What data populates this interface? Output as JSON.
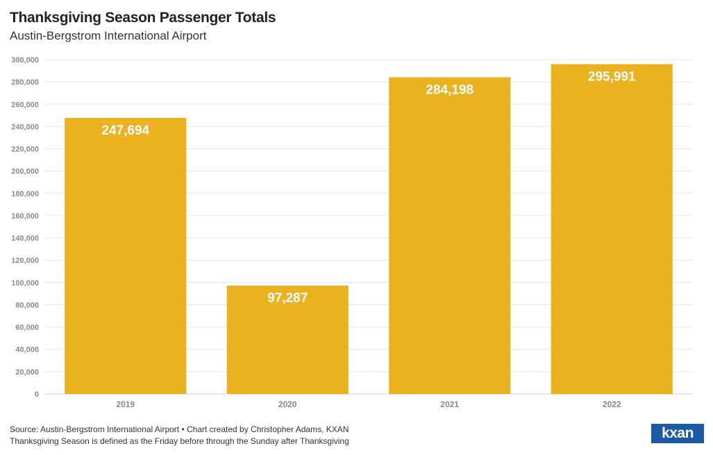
{
  "header": {
    "title": "Thanksgiving Season Passenger Totals",
    "subtitle": "Austin-Bergstrom International Airport"
  },
  "footer": {
    "source": "Source: Austin-Bergstrom International Airport • Chart created by Christopher Adams, KXAN",
    "note": "Thanksgiving Season is defined as the Friday before through the Sunday after Thanksgiving",
    "logo_text": "kxan"
  },
  "colors": {
    "bar": "#ebb220",
    "grid": "#e6e6e6",
    "logo_bg": "#1a5aa6"
  },
  "chart_data": {
    "type": "bar",
    "title": "Thanksgiving Season Passenger Totals",
    "subtitle": "Austin-Bergstrom International Airport",
    "categories": [
      "2019",
      "2020",
      "2021",
      "2022"
    ],
    "values": [
      247694,
      97287,
      284198,
      295991
    ],
    "value_labels": [
      "247,694",
      "97,287",
      "284,198",
      "295,991"
    ],
    "xlabel": "",
    "ylabel": "",
    "ylim": [
      0,
      300000
    ],
    "y_ticks": [
      0,
      20000,
      40000,
      60000,
      80000,
      100000,
      120000,
      140000,
      160000,
      180000,
      200000,
      220000,
      240000,
      260000,
      280000,
      300000
    ],
    "y_tick_labels": [
      "0",
      "20,000",
      "40,000",
      "60,000",
      "80,000",
      "100,000",
      "120,000",
      "140,000",
      "160,000",
      "180,000",
      "200,000",
      "220,000",
      "240,000",
      "260,000",
      "280,000",
      "300,000"
    ],
    "grid": true,
    "legend": "none"
  }
}
